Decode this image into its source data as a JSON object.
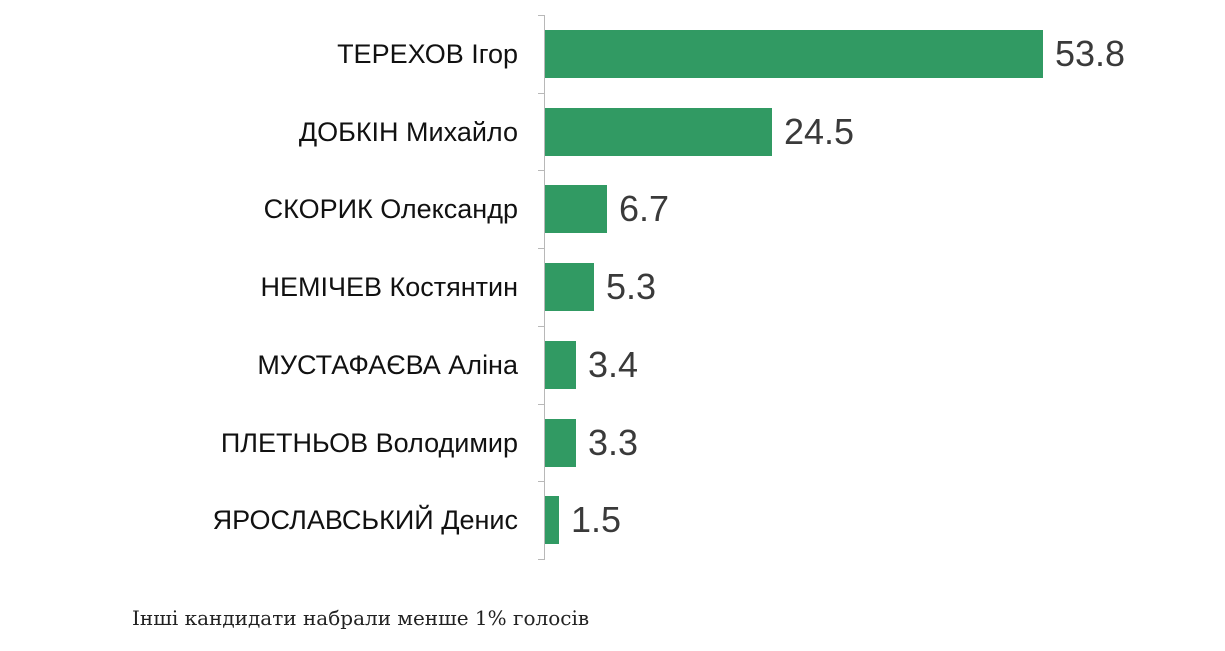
{
  "chart_data": {
    "type": "bar",
    "orientation": "horizontal",
    "title": "",
    "xlabel": "",
    "ylabel": "",
    "categories": [
      "ТЕРЕХОВ Ігор",
      "ДОБКІН Михайло",
      "СКОРИК Олександр",
      "НЕМІЧЕВ Костянтин",
      "МУСТАФАЄВА Аліна",
      "ПЛЕТНЬОВ Володимир",
      "ЯРОСЛАВСЬКИЙ Денис"
    ],
    "values": [
      53.8,
      24.5,
      6.7,
      5.3,
      3.4,
      3.3,
      1.5
    ],
    "value_labels": [
      "53.8",
      "24.5",
      "6.7",
      "5.3",
      "3.4",
      "3.3",
      "1.5"
    ],
    "xlim": [
      0,
      55
    ],
    "grid": false,
    "legend": null,
    "bar_color": "#319a63",
    "annotation": "Інші кандидати набрали менше 1% голосів"
  },
  "footnote": "Інші кандидати набрали менше 1% голосів"
}
